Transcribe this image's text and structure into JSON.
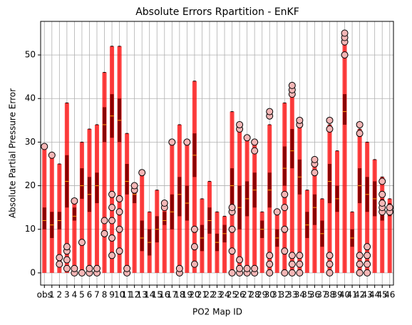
{
  "chart_data": {
    "type": "box",
    "title": "Absolute Errors Rpartition - EnKF",
    "xlabel": "PO2 Map ID",
    "ylabel": "Absolute Partial Pressure Error",
    "categories": [
      "obs",
      "1",
      "2",
      "3",
      "4",
      "5",
      "6",
      "7",
      "8",
      "9",
      "10",
      "11",
      "12",
      "13",
      "14",
      "15",
      "16",
      "17",
      "18",
      "19",
      "20",
      "21",
      "22",
      "23",
      "24",
      "25",
      "26",
      "27",
      "28",
      "29",
      "30",
      "31",
      "32",
      "33",
      "34",
      "35",
      "36",
      "37",
      "38",
      "39",
      "40",
      "41",
      "42",
      "43",
      "44",
      "45",
      "46"
    ],
    "min": [
      0,
      0,
      0,
      0,
      0,
      0,
      0,
      0,
      0,
      0,
      0,
      0,
      0,
      0,
      0,
      0,
      0,
      0,
      0,
      0,
      0,
      0,
      0,
      0,
      0,
      0,
      0,
      0,
      0,
      0,
      0,
      0,
      0,
      0,
      0,
      0,
      0,
      0,
      0,
      0,
      0,
      0,
      0,
      0,
      0,
      0,
      0
    ],
    "q1": [
      10,
      8,
      10,
      15,
      12,
      17,
      14,
      16,
      30,
      31,
      30,
      18,
      16,
      5,
      4,
      7,
      11,
      10,
      13,
      12,
      22,
      5,
      9,
      5,
      7,
      15,
      10,
      13,
      15,
      8,
      15,
      6,
      20,
      24,
      18,
      8,
      11,
      6,
      16,
      14,
      34,
      6,
      16,
      14,
      13,
      12,
      13
    ],
    "median": [
      12,
      11,
      12,
      21,
      13,
      20,
      18,
      20,
      34,
      36,
      35,
      21,
      18,
      8,
      7,
      10,
      12,
      14,
      18,
      16,
      27,
      8,
      12,
      7,
      9,
      20,
      15,
      17,
      19,
      10,
      19,
      8,
      24,
      28,
      22,
      11,
      15,
      9,
      21,
      17,
      37,
      8,
      20,
      18,
      17,
      15,
      14
    ],
    "q3": [
      15,
      14,
      14,
      27,
      15,
      24,
      22,
      23,
      38,
      41,
      40,
      25,
      19,
      12,
      10,
      13,
      14,
      18,
      22,
      20,
      32,
      11,
      15,
      9,
      11,
      24,
      20,
      21,
      23,
      12,
      23,
      10,
      29,
      33,
      26,
      14,
      18,
      12,
      25,
      20,
      41,
      10,
      24,
      22,
      21,
      17,
      16
    ],
    "max": [
      29,
      27,
      25,
      39,
      16,
      30,
      33,
      34,
      46,
      52,
      52,
      32,
      20,
      23,
      14,
      19,
      16,
      30,
      34,
      30,
      44,
      17,
      21,
      14,
      13,
      37,
      33,
      31,
      30,
      14,
      34,
      14,
      39,
      42,
      35,
      19,
      26,
      17,
      34,
      28,
      55,
      14,
      33,
      30,
      26,
      22,
      17
    ],
    "outliers": [
      [
        29
      ],
      [
        27
      ],
      [
        2,
        3.5
      ],
      [
        1,
        3,
        5,
        6
      ],
      [
        0,
        1,
        16.5
      ],
      [
        7,
        0
      ],
      [
        0,
        1
      ],
      [
        0,
        1
      ],
      [
        9,
        12
      ],
      [
        4,
        8,
        12,
        15,
        18
      ],
      [
        5,
        10,
        14,
        17
      ],
      [
        0,
        1
      ],
      [
        19,
        20
      ],
      [
        23
      ],
      [],
      [],
      [
        15,
        16
      ],
      [
        30
      ],
      [
        0,
        1
      ],
      [
        30
      ],
      [
        2,
        6,
        10
      ],
      [],
      [],
      [],
      [],
      [
        0,
        5,
        10,
        14,
        15
      ],
      [
        0,
        1,
        3,
        33,
        34
      ],
      [
        0,
        1,
        31
      ],
      [
        0,
        1,
        28,
        30
      ],
      [],
      [
        0,
        2,
        4,
        36,
        37
      ],
      [
        14
      ],
      [
        0,
        5,
        10,
        15,
        18
      ],
      [
        0,
        2,
        4,
        41,
        42,
        43
      ],
      [
        0,
        2,
        4,
        34,
        35
      ],
      [],
      [
        23,
        25,
        26
      ],
      [],
      [
        0,
        2,
        4,
        33,
        35
      ],
      [],
      [
        50,
        53,
        54,
        55
      ],
      [],
      [
        0,
        2,
        4,
        32,
        34
      ],
      [
        0,
        2,
        4,
        6
      ],
      [],
      [
        14,
        15,
        16,
        18,
        21
      ],
      [
        14,
        15
      ]
    ],
    "box_color": "#8b0000",
    "cloud_color": "#ff0000",
    "median_color": "#ffa500",
    "ylim": [
      -2.8,
      57.7
    ],
    "yticks": [
      0,
      10,
      20,
      30,
      40,
      50
    ],
    "grid": true
  }
}
